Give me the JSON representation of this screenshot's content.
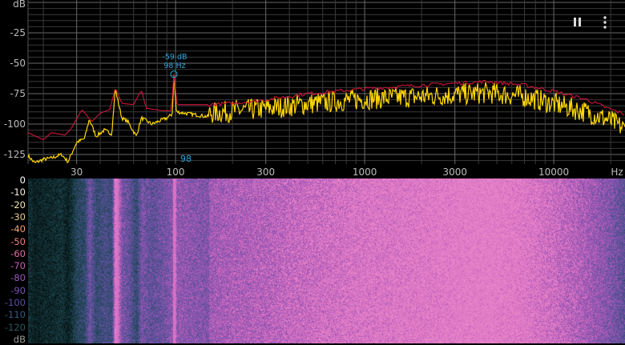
{
  "toolbar": {
    "pause_icon": "pause-icon",
    "menu_icon": "more-vert-icon"
  },
  "marker": {
    "level": "-59 dB",
    "freq": "98 Hz",
    "freq_axis_label": "98",
    "color": "#2aa5dc"
  },
  "colors": {
    "peak_hold": "#d0143c",
    "spectrum": "#ffd700",
    "grid": "#3a3a3a",
    "major_grid": "#6a6a6a"
  },
  "chart_data": {
    "type": "line",
    "xscale": "log",
    "xlim": [
      16.6,
      23800
    ],
    "ylim": [
      -140,
      0
    ],
    "y_unit_label": "dB",
    "x_unit_label": "Hz",
    "y_ticks": [
      "dB",
      "-25",
      "-50",
      "-75",
      "-100",
      "-125"
    ],
    "y_tick_values": [
      0,
      -25,
      -50,
      -75,
      -100,
      -125
    ],
    "x_ticks": [
      "30",
      "100",
      "300",
      "1000",
      "3000",
      "10000"
    ],
    "x_tick_values": [
      30,
      100,
      300,
      1000,
      3000,
      10000
    ],
    "grid": true,
    "series": [
      {
        "role": "peak-hold",
        "points": [
          [
            16.6,
            -107
          ],
          [
            20,
            -113
          ],
          [
            22,
            -107
          ],
          [
            26,
            -109
          ],
          [
            28,
            -104
          ],
          [
            32,
            -88
          ],
          [
            36,
            -98
          ],
          [
            40,
            -91
          ],
          [
            45,
            -88
          ],
          [
            48,
            -70
          ],
          [
            52,
            -83
          ],
          [
            60,
            -84
          ],
          [
            66,
            -72
          ],
          [
            70,
            -87
          ],
          [
            85,
            -89
          ],
          [
            95,
            -89
          ],
          [
            98,
            -59
          ],
          [
            102,
            -84
          ],
          [
            150,
            -84
          ],
          [
            200,
            -83
          ],
          [
            300,
            -80
          ],
          [
            500,
            -75
          ],
          [
            1000,
            -71
          ],
          [
            2000,
            -68
          ],
          [
            4500,
            -65
          ],
          [
            7000,
            -68
          ],
          [
            10000,
            -73
          ],
          [
            15000,
            -80
          ],
          [
            20000,
            -88
          ],
          [
            23800,
            -92
          ]
        ]
      },
      {
        "role": "spectrum",
        "points": [
          [
            16.6,
            -126
          ],
          [
            18,
            -132
          ],
          [
            20,
            -129
          ],
          [
            22,
            -128
          ],
          [
            25,
            -125
          ],
          [
            27,
            -131
          ],
          [
            30,
            -115
          ],
          [
            33,
            -112
          ],
          [
            35,
            -96
          ],
          [
            38,
            -110
          ],
          [
            42,
            -105
          ],
          [
            46,
            -108
          ],
          [
            48,
            -71
          ],
          [
            52,
            -95
          ],
          [
            56,
            -98
          ],
          [
            62,
            -110
          ],
          [
            66,
            -95
          ],
          [
            75,
            -100
          ],
          [
            90,
            -95
          ],
          [
            96,
            -92
          ],
          [
            98,
            -60
          ],
          [
            101,
            -90
          ],
          [
            150,
            -94
          ],
          [
            200,
            -92
          ],
          [
            300,
            -90
          ],
          [
            500,
            -86
          ],
          [
            1000,
            -82
          ],
          [
            2000,
            -80
          ],
          [
            4500,
            -77
          ],
          [
            7000,
            -80
          ],
          [
            10000,
            -86
          ],
          [
            15000,
            -93
          ],
          [
            20000,
            -100
          ],
          [
            23800,
            -107
          ]
        ]
      }
    ]
  },
  "spectrogram": {
    "scale_labels": [
      "0",
      "-10",
      "-20",
      "-30",
      "-40",
      "-50",
      "-60",
      "-70",
      "-80",
      "-90",
      "-100",
      "-110",
      "-120",
      "dB"
    ],
    "scale_colors": [
      "#ffffff",
      "#f4f0e0",
      "#f0e6b0",
      "#e8c890",
      "#f0a070",
      "#f08080",
      "#e070a8",
      "#c060b8",
      "#9a58c0",
      "#7a52b8",
      "#5a4ea8",
      "#3a5a8a",
      "#2a5a5a",
      "#999999"
    ],
    "tonal_lines_hz": [
      49,
      98
    ]
  }
}
